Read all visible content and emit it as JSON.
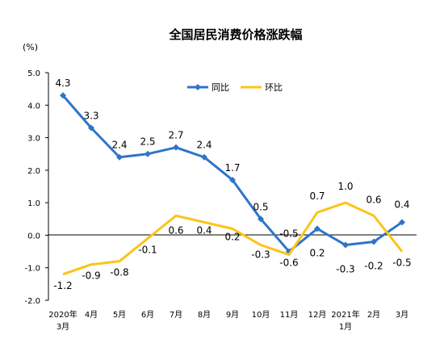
{
  "chart_data": {
    "type": "line",
    "title": "全国居民消费价格涨跌幅",
    "unit_label": "(%)",
    "categories": [
      "2020年|3月",
      "4月",
      "5月",
      "6月",
      "7月",
      "8月",
      "9月",
      "10月",
      "11月",
      "12月",
      "2021年|1月",
      "2月",
      "3月"
    ],
    "ylim": [
      -2.0,
      5.0
    ],
    "yticks": [
      "-2.0",
      "-1.0",
      "0.0",
      "1.0",
      "2.0",
      "3.0",
      "4.0",
      "5.0"
    ],
    "grid": false,
    "legend_position": "top-center",
    "series": [
      {
        "name": "同比",
        "color": "#2e75c8",
        "values": [
          4.3,
          3.3,
          2.4,
          2.5,
          2.7,
          2.4,
          1.7,
          0.5,
          -0.5,
          0.2,
          -0.3,
          -0.2,
          0.4
        ],
        "labels": [
          "4.3",
          "3.3",
          "2.4",
          "2.5",
          "2.7",
          "2.4",
          "1.7",
          "0.5",
          "-0.5",
          "0.2",
          "-0.3",
          "-0.2",
          "0.4"
        ]
      },
      {
        "name": "环比",
        "color": "#fcc419",
        "values": [
          -1.2,
          -0.9,
          -0.8,
          -0.1,
          0.6,
          0.4,
          0.2,
          -0.3,
          -0.6,
          0.7,
          1.0,
          0.6,
          -0.5
        ],
        "labels": [
          "-1.2",
          "-0.9",
          "-0.8",
          "-0.1",
          "0.6",
          "0.4",
          "0.2",
          "-0.3",
          "-0.6",
          "0.7",
          "1.0",
          "0.6",
          "-0.5"
        ]
      }
    ]
  }
}
